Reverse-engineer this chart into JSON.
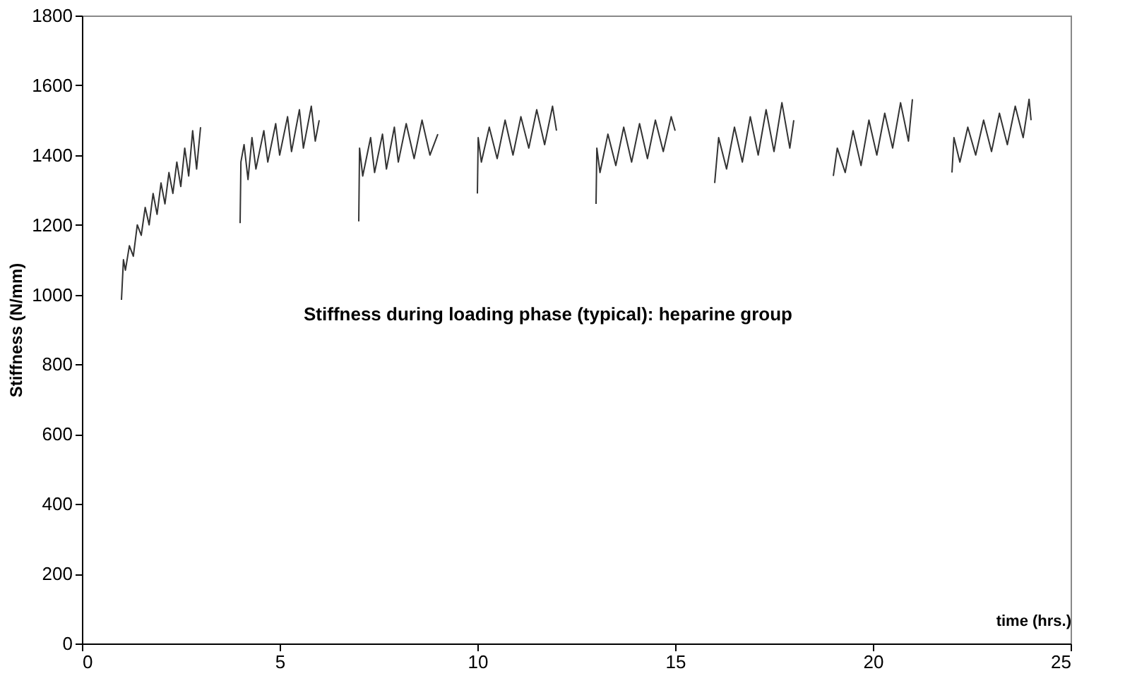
{
  "chart_data": {
    "type": "line",
    "xlabel": "time (hrs.)",
    "ylabel": "Stiffness (N/mm)",
    "annotations": [
      "Stiffness during loading phase (typical): heparine group"
    ],
    "x": [
      1.0,
      1.05,
      1.1,
      1.2,
      1.3,
      1.4,
      1.5,
      1.6,
      1.7,
      1.8,
      1.9,
      2.0,
      2.1,
      2.2,
      2.3,
      2.4,
      2.5,
      2.6,
      2.7,
      2.8,
      2.9,
      3.0,
      3.5,
      4.0,
      4.02,
      4.1,
      4.2,
      4.3,
      4.4,
      4.6,
      4.7,
      4.9,
      5.0,
      5.2,
      5.3,
      5.5,
      5.6,
      5.8,
      5.9,
      6.0,
      6.5,
      7.0,
      7.02,
      7.1,
      7.3,
      7.4,
      7.6,
      7.7,
      7.9,
      8.0,
      8.2,
      8.4,
      8.6,
      8.8,
      9.0,
      9.5,
      10.0,
      10.02,
      10.1,
      10.3,
      10.5,
      10.7,
      10.9,
      11.1,
      11.3,
      11.5,
      11.7,
      11.9,
      12.0,
      12.5,
      13.0,
      13.02,
      13.1,
      13.3,
      13.5,
      13.7,
      13.9,
      14.1,
      14.3,
      14.5,
      14.7,
      14.9,
      15.0,
      15.5,
      16.0,
      16.1,
      16.3,
      16.5,
      16.7,
      16.9,
      17.1,
      17.3,
      17.5,
      17.7,
      17.9,
      18.0,
      18.5,
      19.0,
      19.1,
      19.3,
      19.5,
      19.7,
      19.9,
      20.1,
      20.3,
      20.5,
      20.7,
      20.9,
      21.0,
      21.5,
      22.0,
      22.05,
      22.2,
      22.4,
      22.6,
      22.8,
      23.0,
      23.2,
      23.4,
      23.6,
      23.8,
      23.95,
      24.0
    ],
    "series": [
      {
        "color": "#333333",
        "values": [
          985,
          1100,
          1070,
          1140,
          1110,
          1200,
          1170,
          1250,
          1200,
          1290,
          1230,
          1320,
          1260,
          1350,
          1290,
          1380,
          1310,
          1420,
          1340,
          1470,
          1360,
          1480,
          null,
          1205,
          1380,
          1430,
          1330,
          1450,
          1360,
          1470,
          1380,
          1490,
          1400,
          1510,
          1410,
          1530,
          1420,
          1540,
          1440,
          1500,
          null,
          1210,
          1420,
          1340,
          1450,
          1350,
          1460,
          1360,
          1480,
          1380,
          1490,
          1390,
          1500,
          1400,
          1460,
          null,
          1290,
          1450,
          1380,
          1480,
          1390,
          1500,
          1400,
          1510,
          1420,
          1530,
          1430,
          1540,
          1470,
          null,
          1260,
          1420,
          1350,
          1460,
          1370,
          1480,
          1380,
          1490,
          1390,
          1500,
          1410,
          1510,
          1470,
          null,
          1320,
          1450,
          1360,
          1480,
          1380,
          1510,
          1400,
          1530,
          1410,
          1550,
          1420,
          1500,
          null,
          1340,
          1420,
          1350,
          1470,
          1370,
          1500,
          1400,
          1520,
          1420,
          1550,
          1440,
          1560,
          null,
          1350,
          1450,
          1380,
          1480,
          1400,
          1500,
          1410,
          1520,
          1430,
          1540,
          1450,
          1560,
          1500
        ]
      }
    ],
    "xlim": [
      0,
      25
    ],
    "xticks": [
      0,
      5,
      10,
      15,
      20,
      25
    ],
    "ylim": [
      0,
      1800
    ],
    "yticks": [
      0,
      200,
      400,
      600,
      800,
      1000,
      1200,
      1400,
      1600,
      1800
    ],
    "grid": false,
    "legend": false,
    "marker": "none",
    "line_style": "solid"
  }
}
